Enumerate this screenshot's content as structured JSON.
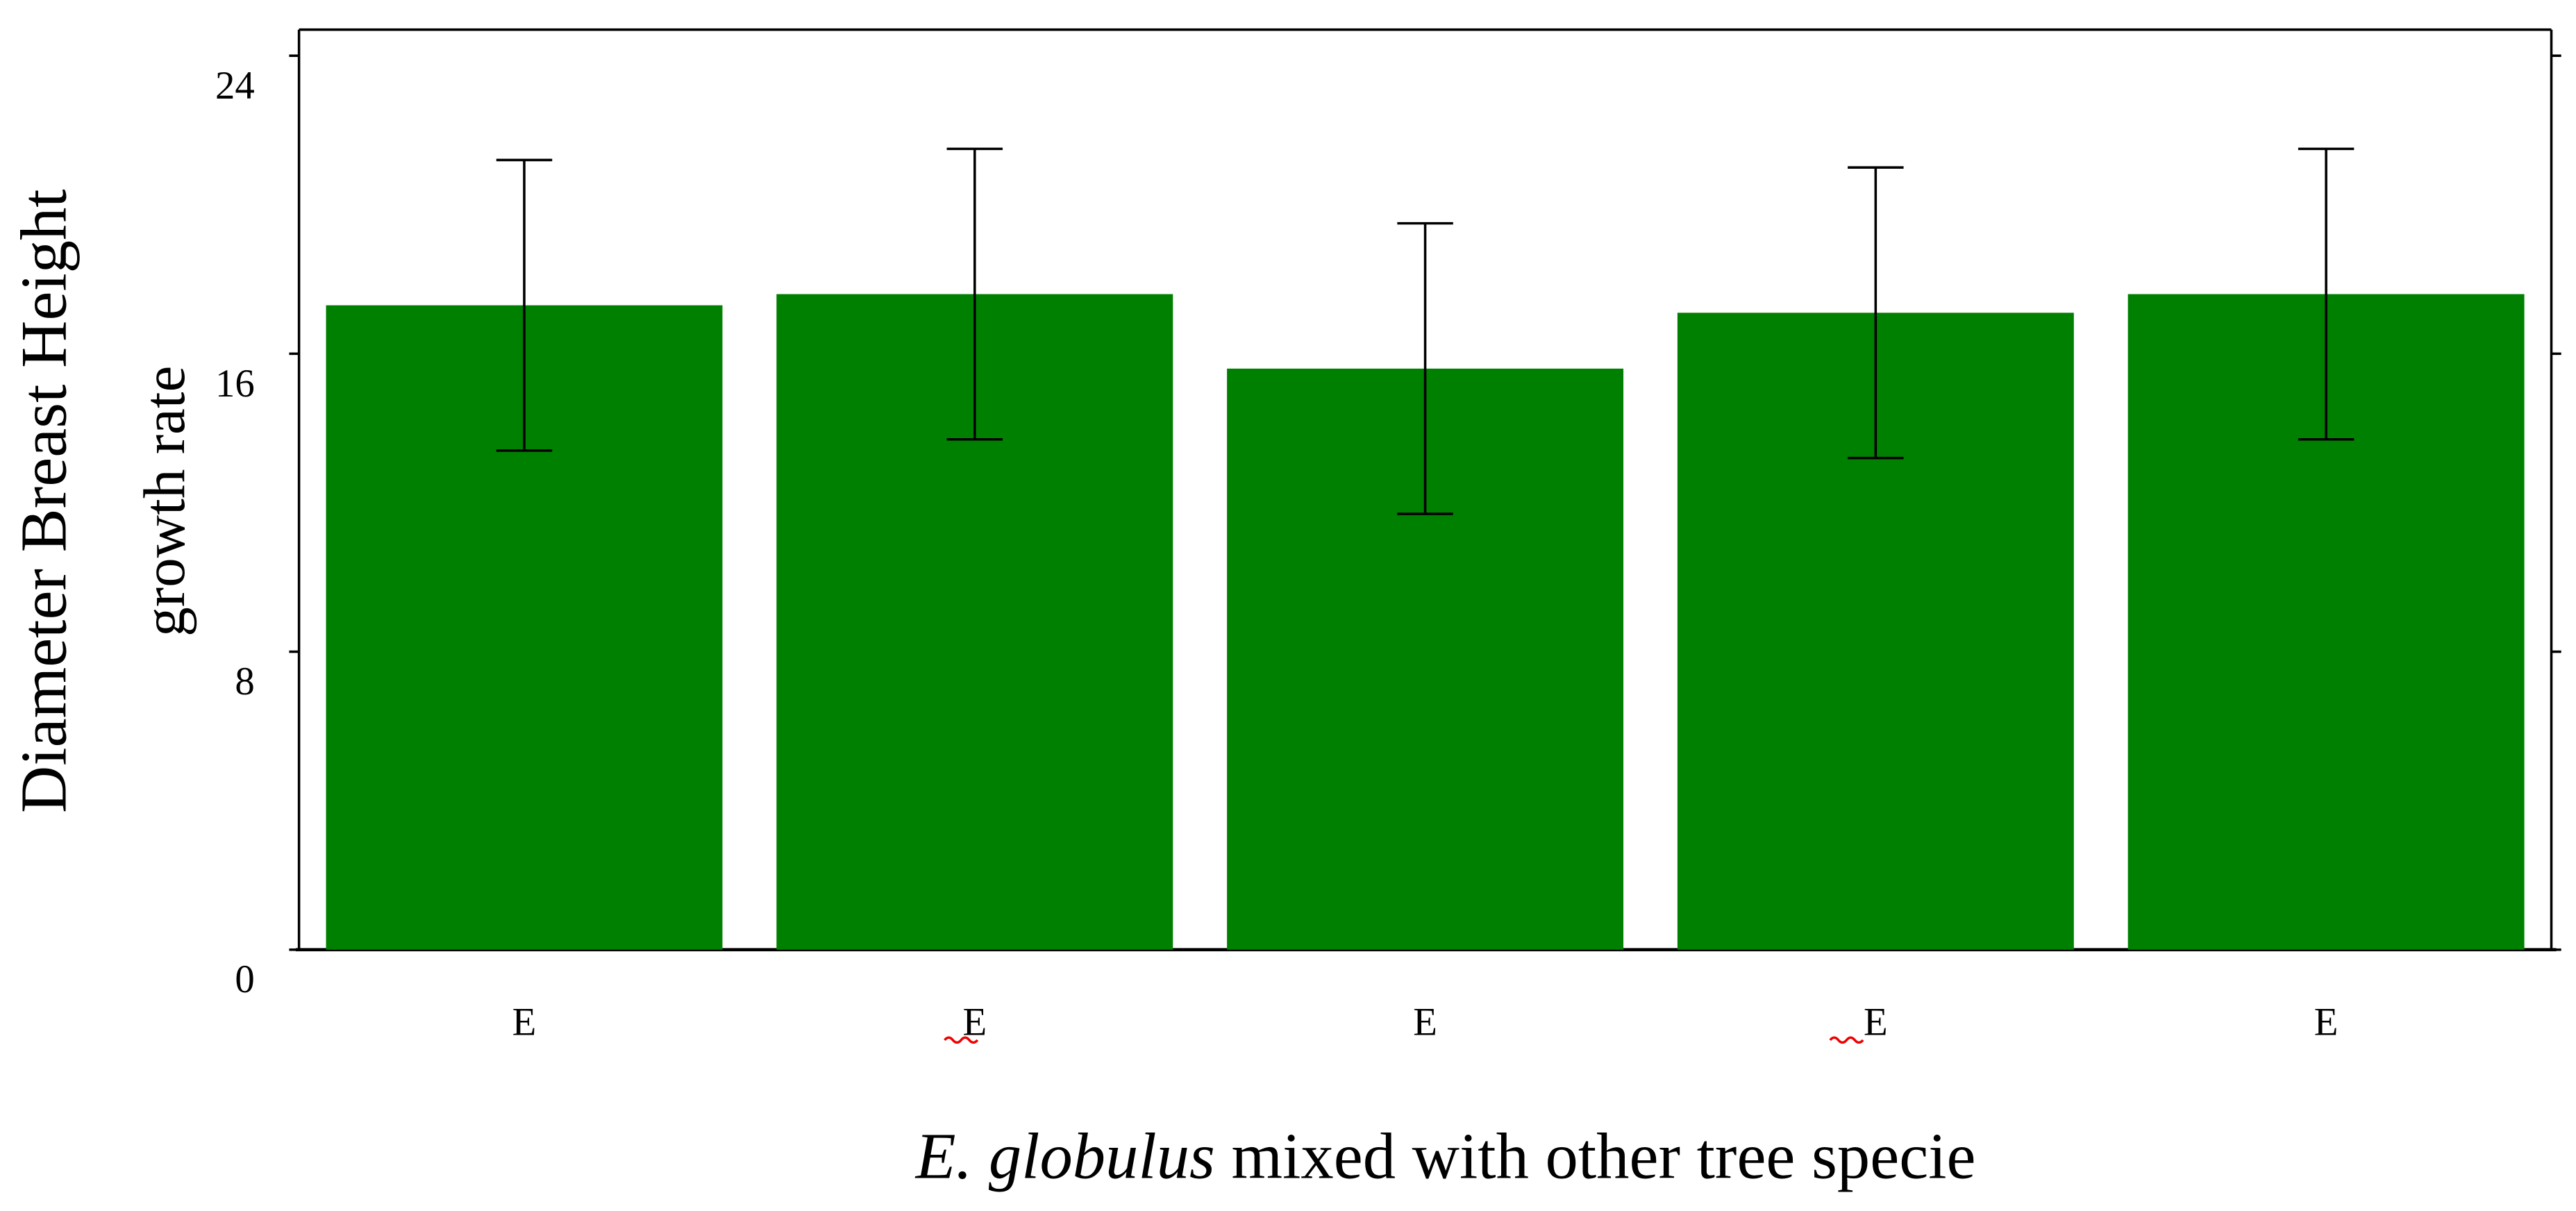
{
  "chart_data": {
    "type": "bar",
    "ylabel": [
      "Diameter Breast Height",
      "growth rate"
    ],
    "xlabel": [
      "E. globulus",
      "mixed with other tree specie"
    ],
    "categories": [
      "E",
      "E",
      "E",
      "E",
      "E"
    ],
    "values": [
      17.3,
      17.6,
      15.6,
      17.1,
      17.6
    ],
    "errors": [
      3.9,
      3.9,
      3.9,
      3.9,
      3.9
    ],
    "color": "#008000",
    "ylim": [
      0,
      24.7
    ],
    "yticks": [
      0,
      8,
      16,
      24
    ],
    "grid": false
  }
}
